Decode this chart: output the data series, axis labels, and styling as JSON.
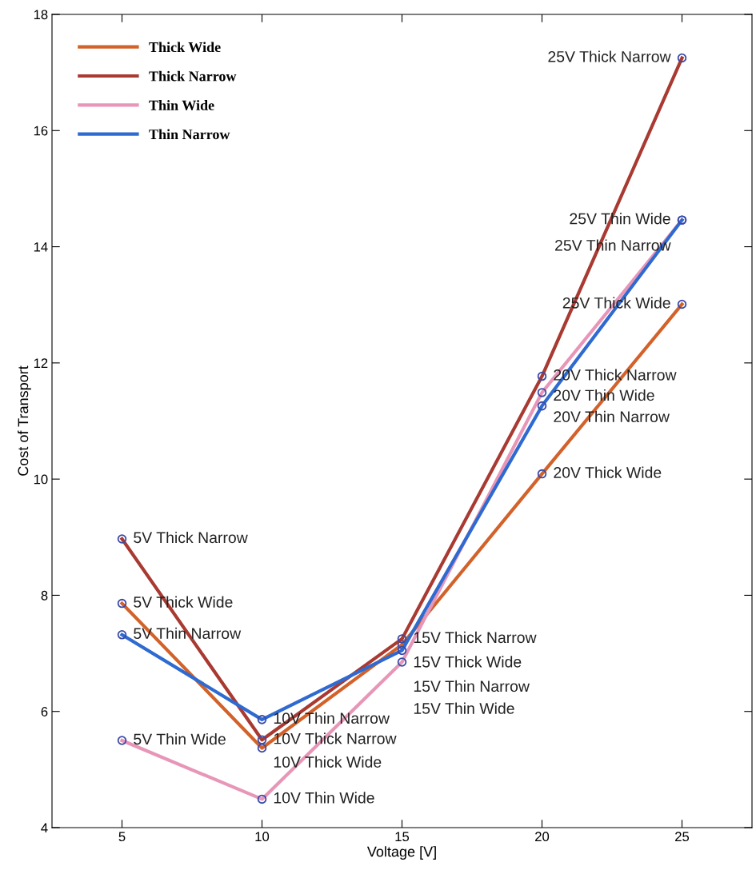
{
  "chart_data": {
    "type": "line",
    "xlabel": "Voltage [V]",
    "ylabel": "Cost of Transport",
    "x": [
      5,
      10,
      15,
      20,
      25
    ],
    "series": [
      {
        "name": "Thick Wide",
        "color": "#d2622a",
        "values": [
          7.86,
          5.37,
          7.15,
          10.09,
          13.01
        ]
      },
      {
        "name": "Thick Narrow",
        "color": "#a83a32",
        "values": [
          8.97,
          5.51,
          7.25,
          11.77,
          17.25
        ]
      },
      {
        "name": "Thin Wide",
        "color": "#e896b8",
        "values": [
          5.5,
          4.49,
          6.85,
          11.49,
          14.46
        ]
      },
      {
        "name": "Thin Narrow",
        "color": "#2f6ad0",
        "values": [
          7.32,
          5.86,
          7.05,
          11.26,
          14.46
        ]
      }
    ],
    "annotations": [
      {
        "text": "5V Thick Narrow",
        "x": 5,
        "y": 8.97
      },
      {
        "text": "5V Thick Wide",
        "x": 5,
        "y": 7.86
      },
      {
        "text": "5V Thin Narrow",
        "x": 5,
        "y": 7.32
      },
      {
        "text": "5V Thin Wide",
        "x": 5,
        "y": 5.5
      },
      {
        "text": "10V Thin Narrow",
        "x": 10,
        "y": 5.86
      },
      {
        "text": "10V Thick Narrow",
        "x": 10,
        "y": 5.51
      },
      {
        "text": "10V Thick Wide",
        "x": 10,
        "y": 5.37
      },
      {
        "text": "10V Thin Wide",
        "x": 10,
        "y": 4.49
      },
      {
        "text": "15V Thick Narrow",
        "x": 15,
        "y": 7.25
      },
      {
        "text": "15V Thick Wide",
        "x": 15,
        "y": 7.15
      },
      {
        "text": "15V Thin Narrow",
        "x": 15,
        "y": 7.05
      },
      {
        "text": "15V Thin Wide",
        "x": 15,
        "y": 6.85
      },
      {
        "text": "20V Thick Narrow",
        "x": 20,
        "y": 11.77
      },
      {
        "text": "20V Thin Wide",
        "x": 20,
        "y": 11.49
      },
      {
        "text": "20V Thin Narrow",
        "x": 20,
        "y": 11.26
      },
      {
        "text": "20V Thick Wide",
        "x": 20,
        "y": 10.09
      },
      {
        "text": "25V Thick Narrow",
        "x": 25,
        "y": 17.25
      },
      {
        "text": "25V Thin Wide",
        "x": 25,
        "y": 14.46
      },
      {
        "text": "25V Thin Narrow",
        "x": 25,
        "y": 14.46
      },
      {
        "text": "25V Thick Wide",
        "x": 25,
        "y": 13.01
      }
    ],
    "xlim": [
      2.5,
      27.5
    ],
    "xticks": [
      5,
      10,
      15,
      20,
      25
    ],
    "ylim": [
      4,
      18
    ],
    "yticks": [
      4,
      6,
      8,
      10,
      12,
      14,
      16,
      18
    ],
    "grid": false,
    "legend": "top left",
    "marker": "circle",
    "line_style": "solid"
  }
}
